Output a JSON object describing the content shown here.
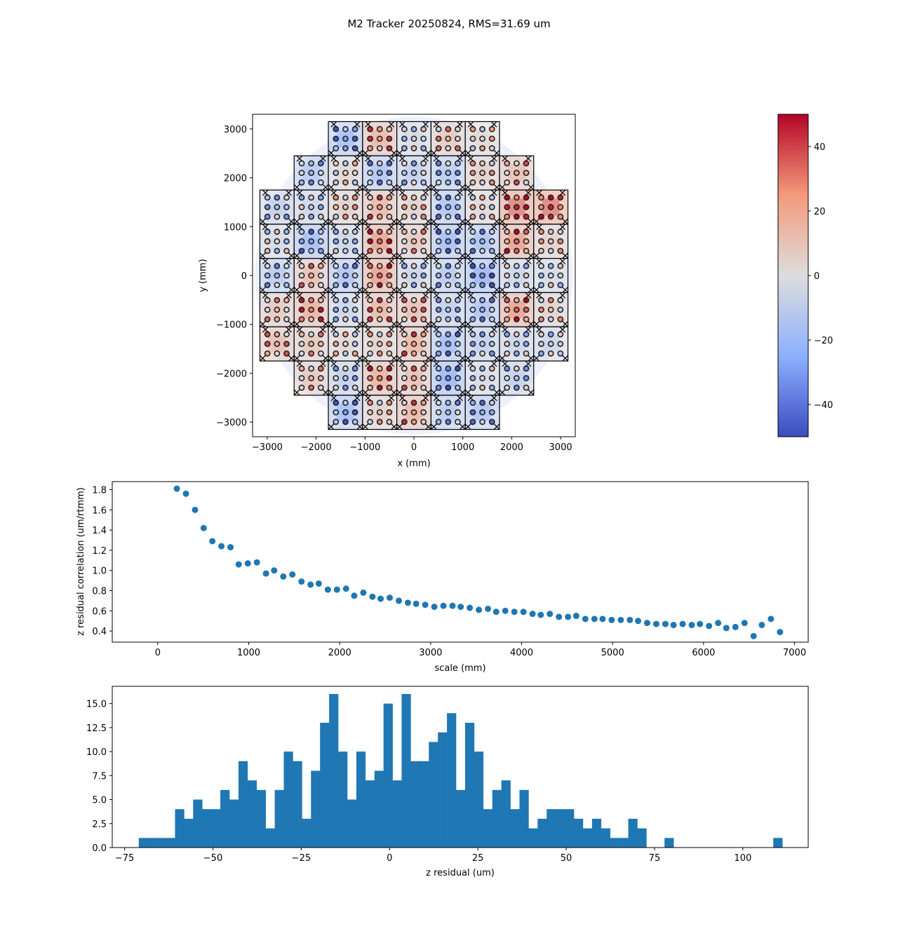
{
  "figure": {
    "title": "M2 Tracker 20250824, RMS=31.69 um"
  },
  "chart_data": [
    {
      "type": "heatmap",
      "xlabel": "x (mm)",
      "ylabel": "y (mm)",
      "xlim": [
        -3300,
        3300
      ],
      "ylim": [
        -3300,
        3300
      ],
      "xticks": [
        -3000,
        -2000,
        -1000,
        0,
        1000,
        2000,
        3000
      ],
      "yticks": [
        -3000,
        -2000,
        -1000,
        0,
        1000,
        2000,
        3000
      ],
      "xtick_labels": [
        "−3000",
        "−2000",
        "−1000",
        "0",
        "1000",
        "2000",
        "3000"
      ],
      "ytick_labels": [
        "−3000",
        "−2000",
        "−1000",
        "0",
        "1000",
        "2000",
        "3000"
      ],
      "segment_size_mm": 700,
      "segment_rows": [
        {
          "y": 2800,
          "x": [
            -1400,
            -700,
            0,
            700,
            1400
          ]
        },
        {
          "y": 2100,
          "x": [
            -2100,
            -1400,
            -700,
            0,
            700,
            1400,
            2100
          ]
        },
        {
          "y": 1400,
          "x": [
            -2800,
            -2100,
            -1400,
            -700,
            0,
            700,
            1400,
            2100,
            2800
          ]
        },
        {
          "y": 700,
          "x": [
            -2800,
            -2100,
            -1400,
            -700,
            0,
            700,
            1400,
            2100,
            2800
          ]
        },
        {
          "y": 0,
          "x": [
            -2800,
            -2100,
            -1400,
            -700,
            0,
            700,
            1400,
            2100,
            2800
          ]
        },
        {
          "y": -700,
          "x": [
            -2800,
            -2100,
            -1400,
            -700,
            0,
            700,
            1400,
            2100,
            2800
          ]
        },
        {
          "y": -1400,
          "x": [
            -2800,
            -2100,
            -1400,
            -700,
            0,
            700,
            1400,
            2100,
            2800
          ]
        },
        {
          "y": -2100,
          "x": [
            -2100,
            -1400,
            -700,
            0,
            700,
            1400,
            2100
          ]
        },
        {
          "y": -2800,
          "x": [
            -1400,
            -700,
            0,
            700,
            1400
          ]
        }
      ],
      "segment_mean_residual_um": [
        [
          -30,
          25,
          -5,
          15,
          5
        ],
        [
          -20,
          5,
          -25,
          -15,
          -20,
          10,
          20
        ],
        [
          -15,
          -10,
          10,
          25,
          10,
          -25,
          5,
          45,
          45
        ],
        [
          -5,
          -30,
          -10,
          35,
          15,
          -30,
          -25,
          35,
          10
        ],
        [
          -20,
          20,
          -25,
          35,
          -10,
          -20,
          -35,
          -10,
          -5
        ],
        [
          15,
          30,
          -10,
          25,
          20,
          -15,
          -25,
          35,
          10
        ],
        [
          20,
          15,
          5,
          10,
          25,
          -30,
          -15,
          -10,
          -10
        ],
        [
          15,
          -15,
          30,
          20,
          -35,
          -5,
          -15
        ],
        [
          -30,
          10,
          25,
          -20,
          -25
        ]
      ],
      "actuator_pattern": [
        "low",
        "high",
        "mid",
        "low",
        "high"
      ],
      "colorbar": {
        "min": -50,
        "max": 50,
        "ticks": [
          -40,
          -20,
          0,
          20,
          40
        ],
        "tick_labels": [
          "−40",
          "−20",
          "0",
          "20",
          "40"
        ],
        "colormap": "coolwarm"
      }
    },
    {
      "type": "scatter",
      "xlabel": "scale (mm)",
      "ylabel": "z residual correlation (um/rtmm)",
      "xlim": [
        -500,
        7150
      ],
      "ylim": [
        0.29,
        1.88
      ],
      "xticks": [
        0,
        1000,
        2000,
        3000,
        4000,
        5000,
        6000,
        7000
      ],
      "yticks": [
        0.4,
        0.6,
        0.8,
        1.0,
        1.2,
        1.4,
        1.6,
        1.8
      ],
      "ytick_labels": [
        "0.4",
        "0.6",
        "0.8",
        "1.0",
        "1.2",
        "1.4",
        "1.6",
        "1.8"
      ],
      "color": "#1f77b4",
      "x": [
        210,
        310,
        410,
        505,
        600,
        700,
        800,
        890,
        990,
        1090,
        1190,
        1280,
        1380,
        1480,
        1580,
        1680,
        1770,
        1870,
        1970,
        2070,
        2160,
        2260,
        2360,
        2450,
        2550,
        2650,
        2750,
        2840,
        2940,
        3040,
        3140,
        3240,
        3330,
        3430,
        3530,
        3630,
        3720,
        3820,
        3920,
        4020,
        4120,
        4210,
        4310,
        4410,
        4510,
        4600,
        4700,
        4800,
        4890,
        4990,
        5090,
        5190,
        5280,
        5380,
        5480,
        5580,
        5670,
        5770,
        5870,
        5960,
        6060,
        6160,
        6250,
        6350,
        6450,
        6550,
        6640,
        6740,
        6840
      ],
      "y": [
        1.81,
        1.76,
        1.6,
        1.42,
        1.29,
        1.24,
        1.23,
        1.06,
        1.07,
        1.08,
        0.97,
        1.0,
        0.94,
        0.96,
        0.89,
        0.86,
        0.87,
        0.81,
        0.81,
        0.82,
        0.75,
        0.78,
        0.74,
        0.72,
        0.73,
        0.7,
        0.68,
        0.67,
        0.66,
        0.64,
        0.65,
        0.65,
        0.64,
        0.63,
        0.61,
        0.62,
        0.59,
        0.6,
        0.59,
        0.59,
        0.57,
        0.56,
        0.57,
        0.54,
        0.54,
        0.55,
        0.52,
        0.52,
        0.52,
        0.51,
        0.51,
        0.51,
        0.5,
        0.48,
        0.47,
        0.47,
        0.46,
        0.47,
        0.46,
        0.47,
        0.45,
        0.48,
        0.43,
        0.44,
        0.48,
        0.35,
        0.46,
        0.52,
        0.39
      ]
    },
    {
      "type": "bar",
      "subtype": "histogram",
      "xlabel": "z residual (um)",
      "ylabel": "",
      "xlim": [
        -78.5,
        118.5
      ],
      "ylim": [
        0,
        16.8
      ],
      "xticks": [
        -75,
        -50,
        -25,
        0,
        25,
        50,
        75,
        100
      ],
      "xtick_labels": [
        "−75",
        "−50",
        "−25",
        "0",
        "25",
        "50",
        "75",
        "100"
      ],
      "yticks": [
        0,
        2.5,
        5,
        7.5,
        10,
        12.5,
        15
      ],
      "ytick_labels": [
        "0.0",
        "2.5",
        "5.0",
        "7.5",
        "10.0",
        "12.5",
        "15.0"
      ],
      "color": "#1f77b4",
      "bin_start": -71.0,
      "bin_width": 2.566,
      "counts": [
        1,
        1,
        1,
        1,
        4,
        3,
        5,
        4,
        4,
        6,
        5,
        9,
        7,
        6,
        2,
        6,
        10,
        9,
        3,
        8,
        13,
        16,
        10,
        5,
        10,
        7,
        8,
        15,
        7,
        16,
        9,
        9,
        11,
        12,
        14,
        6,
        13,
        10,
        4,
        6,
        7,
        4,
        6,
        2,
        3,
        4,
        4,
        4,
        3,
        2,
        3,
        2,
        1,
        1,
        3,
        2,
        0,
        0,
        1,
        0,
        0,
        0,
        0,
        0,
        0,
        0,
        0,
        0,
        0,
        0,
        1
      ]
    }
  ]
}
